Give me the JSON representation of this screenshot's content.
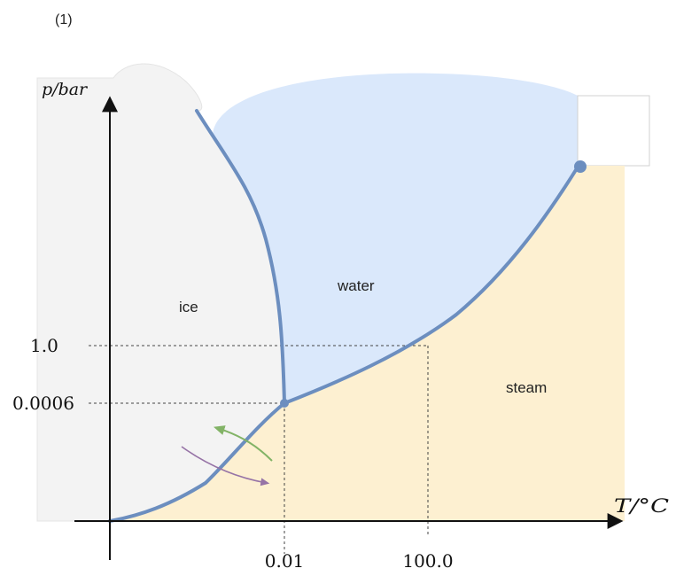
{
  "figure_label": "(1)",
  "axes": {
    "y_label": "p/bar",
    "x_label": "T/°C"
  },
  "regions": {
    "ice": "ice",
    "water": "water",
    "steam": "steam"
  },
  "ticks": {
    "y_high": "1.0",
    "y_low": "0.0006",
    "x_first": "0.01",
    "x_second": "100.0"
  },
  "colors": {
    "ice_fill": "#f3f3f3",
    "water_fill": "#dae8fb",
    "steam_fill": "#fdf0d1",
    "boundary_line": "#6c8ebf",
    "axis": "#111111",
    "arrow_green": "#82b366",
    "arrow_purple": "#9673a6"
  }
}
